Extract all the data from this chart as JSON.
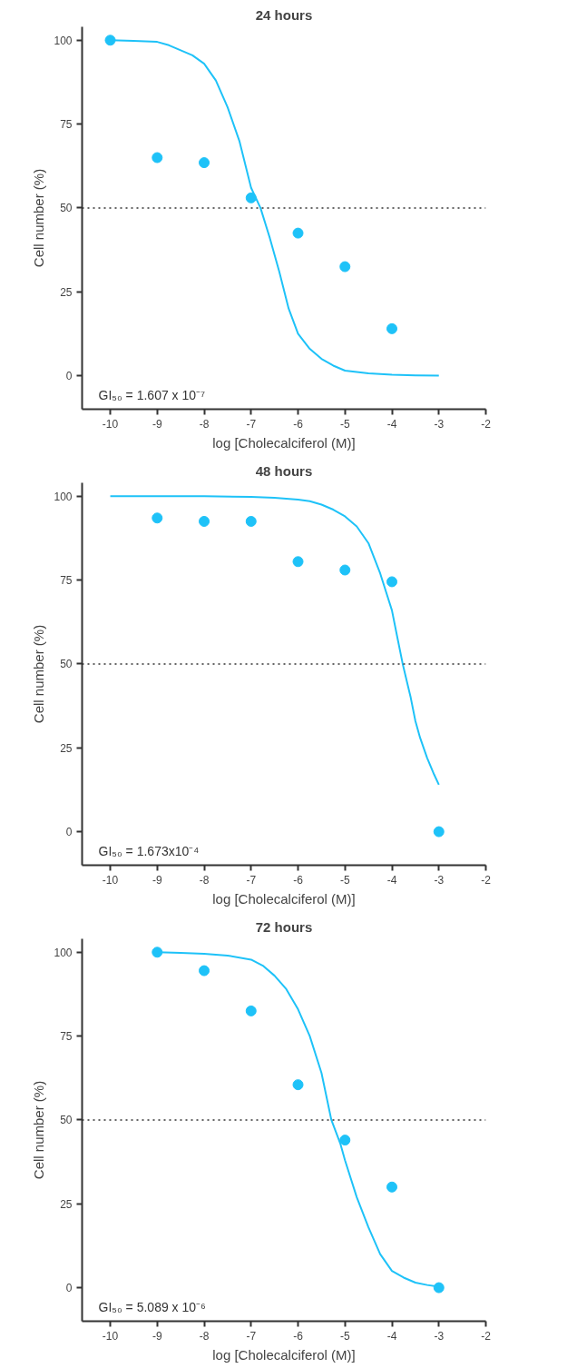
{
  "chart_data": [
    {
      "type": "scatter",
      "title": "24 hours",
      "xlabel": "log [Cholecalciferol (M)]",
      "ylabel": "Cell number (%)",
      "xlim": [
        -10.6,
        -2
      ],
      "ylim": [
        -10,
        104
      ],
      "xticks": [
        -10,
        -9,
        -8,
        -7,
        -6,
        -5,
        -4,
        -3,
        -2
      ],
      "yticks": [
        0,
        25,
        50,
        75,
        100
      ],
      "grid": false,
      "marker": "circle",
      "ref_lines": [
        {
          "axis": "y",
          "value": 50,
          "line_style": "dotted",
          "color": "#333333"
        }
      ],
      "annotations": [
        "GI₅₀ = 1.607 x 10⁻⁷"
      ],
      "series": [
        {
          "color": "#1ec2f8",
          "x": [
            -10,
            -9,
            -8,
            -7,
            -6,
            -5,
            -4
          ],
          "values": [
            100,
            65,
            63.5,
            53,
            42.5,
            32.5,
            14
          ]
        },
        {
          "type": "line",
          "color": "#1ec2f8",
          "marker": "none",
          "line_style": "solid",
          "x": [
            -10,
            -9.5,
            -9,
            -8.75,
            -8.5,
            -8.25,
            -8,
            -7.75,
            -7.5,
            -7.25,
            -7,
            -6.8,
            -6.6,
            -6.4,
            -6.2,
            -6,
            -5.75,
            -5.5,
            -5.25,
            -5,
            -4.5,
            -4,
            -3.5,
            -3
          ],
          "values": [
            100,
            99.8,
            99.5,
            98.5,
            97,
            95.5,
            93,
            88,
            80,
            70,
            56,
            50,
            41,
            31,
            20,
            12.5,
            8,
            5,
            3,
            1.5,
            0.7,
            0.3,
            0.1,
            0
          ]
        }
      ]
    },
    {
      "type": "scatter",
      "title": "48 hours",
      "xlabel": "log [Cholecalciferol (M)]",
      "ylabel": "Cell number (%)",
      "xlim": [
        -10.6,
        -2
      ],
      "ylim": [
        -10,
        104
      ],
      "xticks": [
        -10,
        -9,
        -8,
        -7,
        -6,
        -5,
        -4,
        -3,
        -2
      ],
      "yticks": [
        0,
        25,
        50,
        75,
        100
      ],
      "grid": false,
      "marker": "circle",
      "ref_lines": [
        {
          "axis": "y",
          "value": 50,
          "line_style": "dotted",
          "color": "#333333"
        }
      ],
      "annotations": [
        "GI₅₀ = 1.673x10⁻⁴"
      ],
      "series": [
        {
          "color": "#1ec2f8",
          "x": [
            -9,
            -8,
            -7,
            -6,
            -5,
            -4,
            -3
          ],
          "values": [
            93.5,
            92.5,
            92.5,
            80.5,
            78,
            74.5,
            0
          ]
        },
        {
          "type": "line",
          "color": "#1ec2f8",
          "marker": "none",
          "line_style": "solid",
          "x": [
            -10,
            -8,
            -7,
            -6.5,
            -6,
            -5.75,
            -5.5,
            -5.25,
            -5,
            -4.75,
            -4.5,
            -4.25,
            -4,
            -3.9,
            -3.77,
            -3.6,
            -3.5,
            -3.4,
            -3.25,
            -3.1,
            -3
          ],
          "values": [
            100,
            100,
            99.8,
            99.5,
            99,
            98.5,
            97.5,
            96,
            94,
            91,
            86,
            77,
            66,
            59,
            50,
            40,
            33,
            28,
            22,
            17,
            14
          ]
        }
      ]
    },
    {
      "type": "scatter",
      "title": "72 hours",
      "xlabel": "log [Cholecalciferol (M)]",
      "ylabel": "Cell number (%)",
      "xlim": [
        -10.6,
        -2
      ],
      "ylim": [
        -10,
        104
      ],
      "xticks": [
        -10,
        -9,
        -8,
        -7,
        -6,
        -5,
        -4,
        -3,
        -2
      ],
      "yticks": [
        0,
        25,
        50,
        75,
        100
      ],
      "grid": false,
      "marker": "circle",
      "ref_lines": [
        {
          "axis": "y",
          "value": 50,
          "line_style": "dotted",
          "color": "#333333"
        }
      ],
      "annotations": [
        "GI₅₀ = 5.089 x 10⁻⁶"
      ],
      "series": [
        {
          "color": "#1ec2f8",
          "x": [
            -9,
            -8,
            -7,
            -6,
            -5,
            -4,
            -3
          ],
          "values": [
            100,
            94.5,
            82.5,
            60.5,
            44,
            30,
            0
          ]
        },
        {
          "type": "line",
          "color": "#1ec2f8",
          "marker": "none",
          "line_style": "solid",
          "x": [
            -9,
            -8.5,
            -8,
            -7.5,
            -7,
            -6.75,
            -6.5,
            -6.25,
            -6,
            -5.75,
            -5.5,
            -5.29,
            -5.1,
            -5,
            -4.75,
            -4.5,
            -4.25,
            -4,
            -3.75,
            -3.5,
            -3.25,
            -3
          ],
          "values": [
            100,
            99.8,
            99.5,
            99,
            97.8,
            96,
            93,
            89,
            83,
            75,
            64,
            50,
            43,
            38,
            27,
            18,
            10,
            5,
            3,
            1.5,
            0.8,
            0.3
          ]
        }
      ]
    }
  ]
}
